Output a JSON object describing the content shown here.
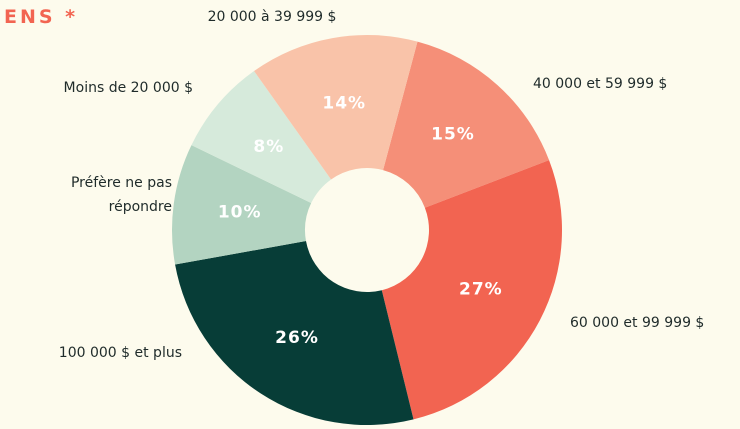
{
  "chart_data": {
    "type": "pie",
    "title": "ENS *",
    "categories": [
      "40 000 et 59 999 $",
      "60 000 et 99 999 $",
      "100 000 $ et plus",
      "Préfère ne pas répondre",
      "Moins de 20 000 $",
      "20 000 à 39 999 $"
    ],
    "values": [
      15,
      27,
      26,
      10,
      8,
      14
    ],
    "value_labels": [
      "15%",
      "27%",
      "26%",
      "10%",
      "8%",
      "14%"
    ],
    "colors": [
      "#f58f78",
      "#f26451",
      "#073d37",
      "#b3d4c1",
      "#d6eadb",
      "#f9c3a9"
    ]
  }
}
